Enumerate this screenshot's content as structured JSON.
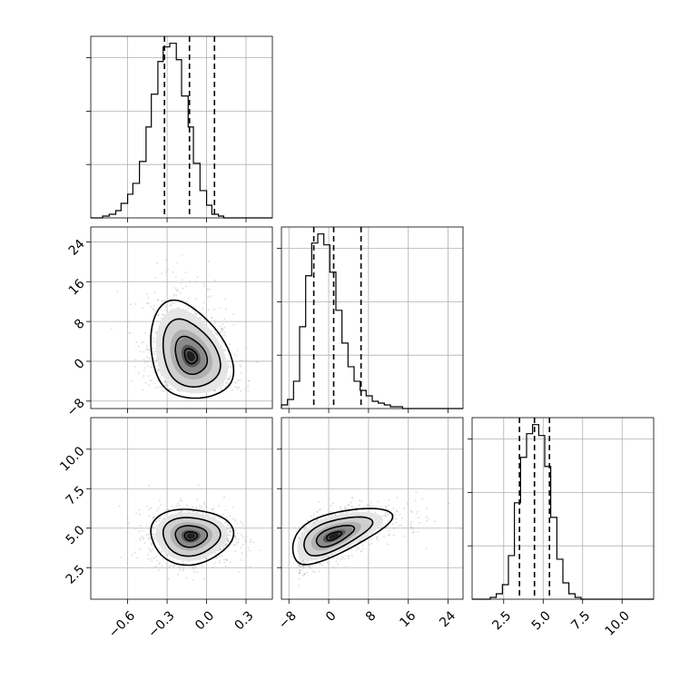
{
  "chart_data": {
    "type": "corner",
    "parameters": [
      {
        "range": [
          -0.88,
          0.5
        ],
        "ticks": [
          -0.6,
          -0.3,
          0.0,
          0.3
        ],
        "tick_labels": [
          "−0.6",
          "−0.3",
          "0.0",
          "0.3"
        ]
      },
      {
        "range": [
          -9.5,
          27
        ],
        "ticks": [
          -8,
          0,
          8,
          16,
          24
        ],
        "tick_labels": [
          "−8",
          "0",
          "8",
          "16",
          "24"
        ]
      },
      {
        "range": [
          0.5,
          12.0
        ],
        "ticks": [
          2.5,
          5.0,
          7.5,
          10.0
        ],
        "tick_labels": [
          "2.5",
          "5.0",
          "7.5",
          "10.0"
        ]
      }
    ],
    "grid": true,
    "histograms": [
      {
        "parameter": 0,
        "quantiles": [
          -0.32,
          -0.13,
          0.06
        ],
        "bin_edges": [
          -0.88,
          -0.83,
          -0.79,
          -0.74,
          -0.69,
          -0.65,
          -0.6,
          -0.56,
          -0.51,
          -0.46,
          -0.42,
          -0.37,
          -0.33,
          -0.28,
          -0.23,
          -0.19,
          -0.14,
          -0.1,
          -0.05,
          0.0,
          0.04,
          0.09,
          0.13,
          0.18,
          0.23,
          0.27,
          0.32,
          0.36,
          0.41,
          0.46,
          0.5
        ],
        "counts": [
          0,
          0,
          1,
          2,
          4,
          8,
          13,
          19,
          31,
          50,
          68,
          86,
          94,
          96,
          87,
          67,
          50,
          30,
          15,
          7,
          2,
          1,
          0,
          0,
          0,
          0,
          0,
          0,
          0,
          0
        ]
      },
      {
        "parameter": 1,
        "quantiles": [
          -3.0,
          1.0,
          6.5
        ],
        "bin_edges": [
          -9.5,
          -8.28,
          -7.07,
          -5.85,
          -4.63,
          -3.42,
          -2.2,
          -0.98,
          0.23,
          1.45,
          2.67,
          3.88,
          5.1,
          6.32,
          7.53,
          8.75,
          9.97,
          11.18,
          12.4,
          13.62,
          14.83,
          16.05,
          17.27,
          18.48,
          19.7,
          20.92,
          22.13,
          23.35,
          24.57,
          25.78,
          27.0
        ],
        "counts": [
          2,
          5,
          15,
          45,
          73,
          91,
          96,
          90,
          75,
          54,
          36,
          23,
          15,
          10,
          7,
          4,
          3,
          2,
          1,
          1,
          0,
          0,
          0,
          0,
          0,
          0,
          0,
          0,
          0,
          0
        ]
      },
      {
        "parameter": 2,
        "quantiles": [
          3.5,
          4.45,
          5.4
        ],
        "bin_edges": [
          0.5,
          0.88,
          1.27,
          1.65,
          2.03,
          2.42,
          2.8,
          3.18,
          3.57,
          3.95,
          4.33,
          4.72,
          5.1,
          5.48,
          5.87,
          6.25,
          6.63,
          7.02,
          7.4,
          7.78,
          8.17,
          8.55,
          8.93,
          9.32,
          9.7,
          10.08,
          10.47,
          10.85,
          11.23,
          11.62,
          12.0
        ],
        "counts": [
          0,
          0,
          0,
          1,
          3,
          8,
          24,
          53,
          78,
          91,
          96,
          90,
          73,
          45,
          22,
          9,
          3,
          1,
          0,
          0,
          0,
          0,
          0,
          0,
          0,
          0,
          0,
          0,
          0,
          0
        ]
      }
    ],
    "pairs": [
      {
        "x_param": 0,
        "y_param": 1,
        "mean": [
          -0.12,
          1.0
        ],
        "sd": [
          0.16,
          5.0
        ],
        "corr": -0.25,
        "skew_y": 0.6
      },
      {
        "x_param": 0,
        "y_param": 2,
        "mean": [
          -0.12,
          4.5
        ],
        "sd": [
          0.16,
          0.9
        ],
        "corr": 0.0,
        "skew_y": 0.0
      },
      {
        "x_param": 1,
        "y_param": 2,
        "mean": [
          1.0,
          4.5
        ],
        "sd": [
          5.0,
          0.9
        ],
        "corr": 0.6,
        "skew_x": 0.6
      }
    ]
  }
}
